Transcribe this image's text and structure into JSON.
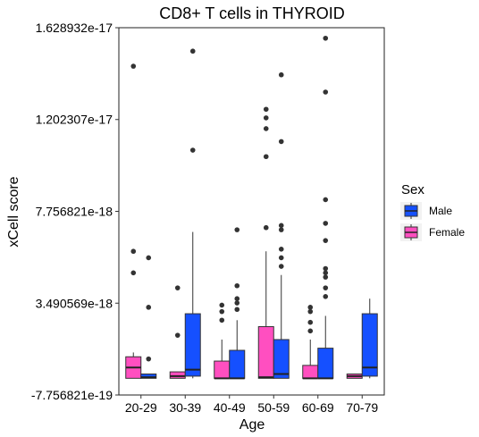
{
  "chart_data": {
    "type": "boxplot",
    "title": "CD8+ T cells in THYROID",
    "xlabel": "Age",
    "ylabel": "xCell score",
    "categories": [
      "20-29",
      "30-39",
      "40-49",
      "50-59",
      "60-69",
      "70-79"
    ],
    "y_ticks": [
      -7.756821e-19,
      3.490569e-18,
      7.756821e-18,
      1.202307e-17,
      1.628932e-17
    ],
    "y_tick_labels": [
      "-7.756821e-19",
      "3.490569e-18",
      "7.756821e-18",
      "1.202307e-17",
      "1.628932e-17"
    ],
    "ylim": [
      -7.756821e-19,
      1.628932e-17
    ],
    "grid": false,
    "legend": {
      "title": "Sex",
      "position": "right",
      "entries": [
        "Male",
        "Female"
      ]
    },
    "series": [
      {
        "name": "Female",
        "color": "#FF4FC0",
        "boxes": [
          {
            "q1": 0.0,
            "median": 5e-19,
            "q3": 1e-18,
            "whisker_low": 0.0,
            "whisker_high": 1.2e-18,
            "outliers": [
              4.9e-18,
              5.9e-18,
              1.45e-17
            ]
          },
          {
            "q1": 0.0,
            "median": 1e-19,
            "q3": 3e-19,
            "whisker_low": 0.0,
            "whisker_high": 3e-19,
            "outliers": [
              2e-18,
              4.2e-18
            ]
          },
          {
            "q1": 0.0,
            "median": 0.0,
            "q3": 8e-19,
            "whisker_low": 0.0,
            "whisker_high": 1.8e-18,
            "outliers": [
              2.7e-18,
              3.1e-18,
              3.4e-18
            ]
          },
          {
            "q1": 0.0,
            "median": 5e-20,
            "q3": 2.4e-18,
            "whisker_low": 0.0,
            "whisker_high": 5.9e-18,
            "outliers": [
              7e-18,
              1.03e-17,
              1.16e-17,
              1.21e-17,
              1.25e-17
            ]
          },
          {
            "q1": 0.0,
            "median": 0.0,
            "q3": 6e-19,
            "whisker_low": 0.0,
            "whisker_high": 1.8e-18,
            "outliers": [
              2.2e-18,
              2.6e-18,
              3.1e-18,
              3.3e-18
            ]
          },
          {
            "q1": 0.0,
            "median": 1e-19,
            "q3": 2e-19,
            "whisker_low": 0.0,
            "whisker_high": 2e-19,
            "outliers": []
          }
        ]
      },
      {
        "name": "Male",
        "color": "#1550FF",
        "boxes": [
          {
            "q1": 0.0,
            "median": 5e-20,
            "q3": 2e-19,
            "whisker_low": 0.0,
            "whisker_high": 2e-19,
            "outliers": [
              9e-19,
              3.3e-18,
              5.6e-18
            ]
          },
          {
            "q1": 1e-19,
            "median": 4e-19,
            "q3": 3e-18,
            "whisker_low": 0.0,
            "whisker_high": 6.8e-18,
            "outliers": [
              1.06e-17,
              1.52e-17
            ]
          },
          {
            "q1": 0.0,
            "median": 0.0,
            "q3": 1.3e-18,
            "whisker_low": 0.0,
            "whisker_high": 2.7e-18,
            "outliers": [
              3.2e-18,
              3.5e-18,
              3.7e-18,
              4.3e-18,
              6.9e-18
            ]
          },
          {
            "q1": 0.0,
            "median": 2e-19,
            "q3": 1.8e-18,
            "whisker_low": 0.0,
            "whisker_high": 4.8e-18,
            "outliers": [
              5.2e-18,
              5.6e-18,
              6e-18,
              6.9e-18,
              7.1e-18,
              1.1e-17,
              1.41e-17
            ]
          },
          {
            "q1": 0.0,
            "median": 0.0,
            "q3": 1.4e-18,
            "whisker_low": 0.0,
            "whisker_high": 2.9e-18,
            "outliers": [
              3.8e-18,
              4.2e-18,
              4.7e-18,
              4.9e-18,
              5.1e-18,
              6.4e-18,
              7.2e-18,
              8.3e-18,
              1.33e-17,
              1.58e-17
            ]
          },
          {
            "q1": 1e-19,
            "median": 5e-19,
            "q3": 3e-18,
            "whisker_low": 0.0,
            "whisker_high": 3.7e-18,
            "outliers": []
          }
        ]
      }
    ]
  }
}
